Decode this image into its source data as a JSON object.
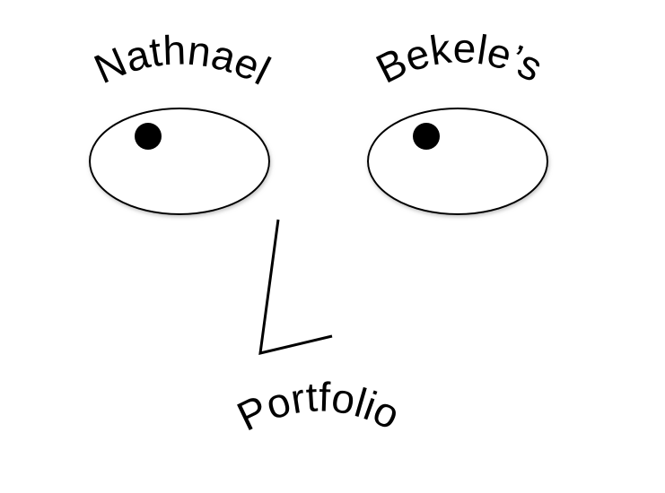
{
  "labels": {
    "first_name": "Nathnael",
    "last_name": "Bekele’s",
    "portfolio": "Portfolio"
  },
  "colors": {
    "background": "#ffffff",
    "ink": "#000000",
    "eye_fill": "#ffffff",
    "eye_shadow": "#bbbbbb"
  }
}
